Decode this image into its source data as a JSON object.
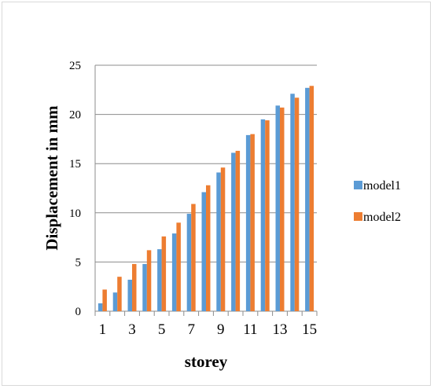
{
  "chart_data": {
    "type": "bar",
    "title": "",
    "xlabel": "storey",
    "ylabel": "Displacement in mm",
    "categories": [
      1,
      2,
      3,
      4,
      5,
      6,
      7,
      8,
      9,
      10,
      11,
      12,
      13,
      14,
      15
    ],
    "x_tick_labels": [
      "1",
      "3",
      "5",
      "7",
      "9",
      "11",
      "13",
      "15"
    ],
    "y_ticks": [
      0,
      5,
      10,
      15,
      20,
      25
    ],
    "ylim": [
      0,
      25
    ],
    "grid": "horizontal",
    "legend": "right",
    "series": [
      {
        "name": "model1",
        "color": "#5B9BD5",
        "values": [
          0.8,
          1.9,
          3.2,
          4.8,
          6.3,
          7.9,
          9.9,
          12.1,
          14.1,
          16.1,
          17.9,
          19.5,
          20.9,
          22.1,
          22.7
        ]
      },
      {
        "name": "model2",
        "color": "#ED7D31",
        "values": [
          2.2,
          3.5,
          4.8,
          6.2,
          7.6,
          9.0,
          10.9,
          12.8,
          14.6,
          16.3,
          18.0,
          19.4,
          20.7,
          21.7,
          22.9
        ]
      }
    ]
  }
}
